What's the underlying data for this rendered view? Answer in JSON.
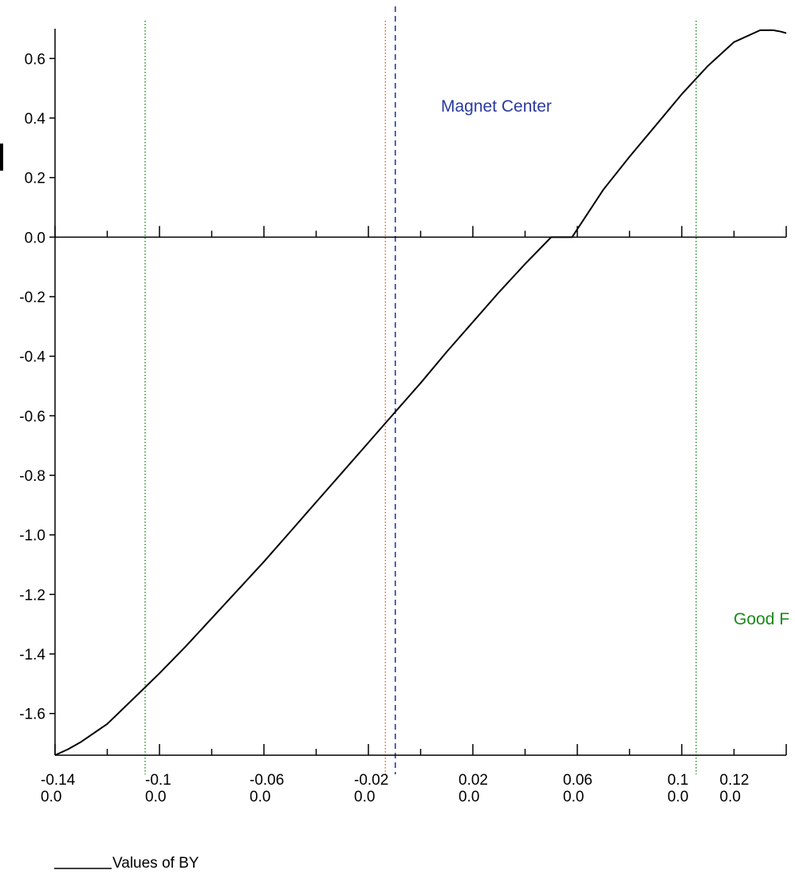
{
  "chart_data": {
    "type": "line",
    "title": "",
    "xlabel": "",
    "ylabel": "",
    "xlim": [
      -0.14,
      0.14
    ],
    "ylim": [
      -1.74,
      0.7
    ],
    "grid": false,
    "x_ticks": [
      {
        "value": -0.14,
        "label": "-0.14",
        "sub": "0.0"
      },
      {
        "value": -0.1,
        "label": "-0.1",
        "sub": "0.0"
      },
      {
        "value": -0.06,
        "label": "-0.06",
        "sub": "0.0"
      },
      {
        "value": -0.02,
        "label": "-0.02",
        "sub": "0.0"
      },
      {
        "value": 0.02,
        "label": "0.02",
        "sub": "0.0"
      },
      {
        "value": 0.06,
        "label": "0.06",
        "sub": "0.0"
      },
      {
        "value": 0.1,
        "label": "0.1",
        "sub": "0.0"
      },
      {
        "value": 0.12,
        "label": "0.12",
        "sub": "0.0"
      }
    ],
    "y_ticks": [
      {
        "value": 0.6,
        "label": "0.6"
      },
      {
        "value": 0.4,
        "label": "0.4"
      },
      {
        "value": 0.2,
        "label": "0.2"
      },
      {
        "value": 0.0,
        "label": "0.0"
      },
      {
        "value": -0.2,
        "label": "-0.2"
      },
      {
        "value": -0.4,
        "label": "-0.4"
      },
      {
        "value": -0.6,
        "label": "-0.6"
      },
      {
        "value": -0.8,
        "label": "-0.8"
      },
      {
        "value": -1.0,
        "label": "-1.0"
      },
      {
        "value": -1.2,
        "label": "-1.2"
      },
      {
        "value": -1.4,
        "label": "-1.4"
      },
      {
        "value": -1.6,
        "label": "-1.6"
      }
    ],
    "series": [
      {
        "name": "Values of BY",
        "color": "#000000",
        "x": [
          -0.14,
          -0.135,
          -0.13,
          -0.12,
          -0.11,
          -0.1,
          -0.09,
          -0.08,
          -0.07,
          -0.06,
          -0.05,
          -0.04,
          -0.03,
          -0.02,
          -0.01,
          0.0,
          0.01,
          0.02,
          0.03,
          0.04,
          0.05,
          0.058,
          0.07,
          0.08,
          0.09,
          0.1,
          0.11,
          0.12,
          0.13,
          0.135,
          0.138,
          0.14
        ],
        "y": [
          -1.74,
          -1.72,
          -1.695,
          -1.635,
          -1.55,
          -1.465,
          -1.375,
          -1.28,
          -1.185,
          -1.09,
          -0.99,
          -0.89,
          -0.79,
          -0.69,
          -0.59,
          -0.49,
          -0.385,
          -0.285,
          -0.185,
          -0.09,
          0.0,
          0.0,
          0.16,
          0.27,
          0.375,
          0.48,
          0.575,
          0.655,
          0.695,
          0.695,
          0.69,
          0.685
        ]
      }
    ],
    "vlines": [
      {
        "x": -0.1055,
        "color": "#1a8a1a",
        "style": "dotted"
      },
      {
        "x": 0.1055,
        "color": "#1a8a1a",
        "style": "dotted"
      },
      {
        "x": -0.0135,
        "color": "#e0641e",
        "style": "dotted"
      },
      {
        "x": -0.0097,
        "color": "#2a3aa0",
        "style": "dashed"
      }
    ],
    "annotations": {
      "magnet_center": {
        "text": "Magnet Center",
        "color": "#2a3aa0"
      },
      "good_field": {
        "text": "Good F",
        "color": "#1a8a1a"
      }
    },
    "legend": {
      "text": "Values of BY",
      "placement": "bottom-left"
    }
  }
}
